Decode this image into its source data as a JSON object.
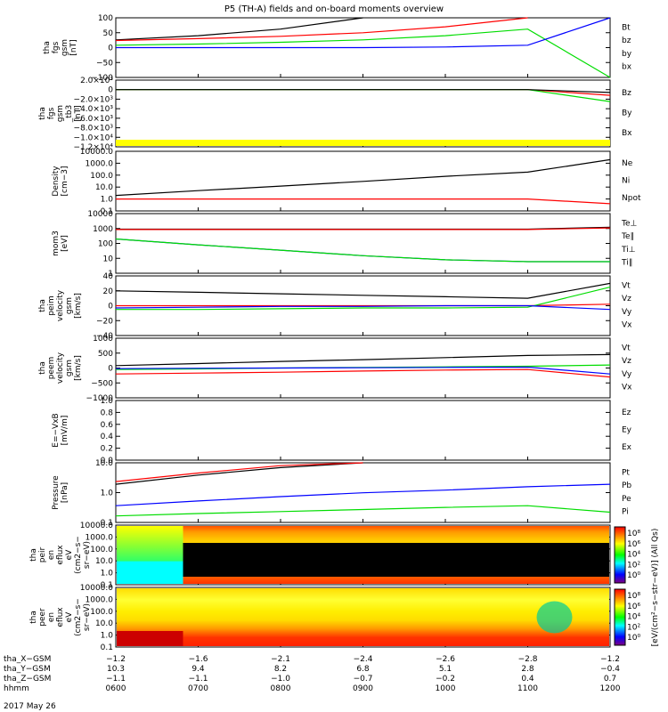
{
  "title": "P5 (TH-A) fields and on-board moments overview",
  "date": "2017 May 26",
  "colors": {
    "black": "#000000",
    "red": "#ff0000",
    "green": "#00dd00",
    "blue": "#0000ff",
    "yellow": "#ffff00"
  },
  "panels": [
    {
      "ylabel": [
        "tha",
        "fgs",
        "gsm",
        "[nT]"
      ],
      "ticks": [
        "100",
        "50",
        "0",
        "−50",
        "−100"
      ],
      "legend": [
        {
          "text": "Bt",
          "color": "black"
        },
        {
          "text": "bz",
          "color": "red"
        },
        {
          "text": "by",
          "color": "green"
        },
        {
          "text": "bx",
          "color": "blue"
        }
      ]
    },
    {
      "ylabel": [
        "tha",
        "fgs",
        "gsm",
        "_tb3",
        "[nT]"
      ],
      "ticks": [
        "2.0×10³",
        "0",
        "−2.0×10³",
        "−4.0×10³",
        "−6.0×10³",
        "−8.0×10³",
        "−1.0×10⁴",
        "−1.2×10⁴"
      ],
      "legend": [
        {
          "text": "Bz",
          "color": "red"
        },
        {
          "text": "By",
          "color": "green"
        },
        {
          "text": "Bx",
          "color": "black"
        }
      ]
    },
    {
      "ylabel": [
        "Density",
        "[cm−3]"
      ],
      "ticks": [
        "10000.0",
        "1000.0",
        "100.0",
        "10.0",
        "1.0",
        "0.1"
      ],
      "legend": [
        {
          "text": "Ne",
          "color": "red"
        },
        {
          "text": "Ni",
          "color": "black"
        },
        {
          "text": "Npot",
          "color": "blue"
        }
      ]
    },
    {
      "ylabel": [
        "mom3",
        "[eV]"
      ],
      "ticks": [
        "10000",
        "1000",
        "100",
        "10",
        "1"
      ],
      "legend": [
        {
          "text": "Te⊥",
          "color": "red"
        },
        {
          "text": "Te∥",
          "color": "black"
        },
        {
          "text": "Ti⊥",
          "color": "blue"
        },
        {
          "text": "Ti∥",
          "color": "green"
        }
      ]
    },
    {
      "ylabel": [
        "tha",
        "peim",
        "velocity",
        "gsm",
        "[km/s]"
      ],
      "ticks": [
        "40",
        "20",
        "0",
        "−20",
        "−40"
      ],
      "legend": [
        {
          "text": "Vt",
          "color": "black"
        },
        {
          "text": "Vz",
          "color": "red"
        },
        {
          "text": "Vy",
          "color": "green"
        },
        {
          "text": "Vx",
          "color": "blue"
        }
      ]
    },
    {
      "ylabel": [
        "tha",
        "peem",
        "velocity",
        "gsm",
        "[km/s]"
      ],
      "ticks": [
        "1000",
        "500",
        "0",
        "−500",
        "−1000"
      ],
      "legend": [
        {
          "text": "Vt",
          "color": "black"
        },
        {
          "text": "Vz",
          "color": "red"
        },
        {
          "text": "Vy",
          "color": "green"
        },
        {
          "text": "Vx",
          "color": "blue"
        }
      ]
    },
    {
      "ylabel": [
        "E=−VxB",
        "[mV/m]"
      ],
      "ticks": [
        "1.0",
        "0.8",
        "0.6",
        "0.4",
        "0.2",
        "0.0"
      ],
      "legend": [
        {
          "text": "Ez",
          "color": "red"
        },
        {
          "text": "Ey",
          "color": "green"
        },
        {
          "text": "Ex",
          "color": "blue"
        }
      ]
    },
    {
      "ylabel": [
        "Pressure",
        "[nPa]"
      ],
      "ticks": [
        "10.0",
        "1.0",
        "0.1"
      ],
      "legend": [
        {
          "text": "Pt",
          "color": "black"
        },
        {
          "text": "Pb",
          "color": "red"
        },
        {
          "text": "Pe",
          "color": "green"
        },
        {
          "text": "Pi",
          "color": "blue"
        }
      ]
    },
    {
      "ylabel": [
        "tha",
        "peir",
        "en",
        "eflux",
        "eV",
        "(cm2−s−",
        "sr−eV)"
      ],
      "ticks": [
        "10000.0",
        "1000.0",
        "100.0",
        "10.0",
        "1.0",
        "0.1"
      ],
      "cbar_ticks": [
        "10⁸",
        "10⁶",
        "10⁴",
        "10²",
        "10⁰"
      ]
    },
    {
      "ylabel": [
        "tha",
        "peer",
        "en",
        "eflux",
        "eV",
        "(cm2−s−",
        "sr−eV)"
      ],
      "ticks": [
        "10000.0",
        "1000.0",
        "100.0",
        "10.0",
        "1.0",
        "0.1"
      ],
      "cbar_ticks": [
        "10⁸",
        "10⁶",
        "10⁴",
        "10²",
        "10⁰"
      ]
    }
  ],
  "colorbar_label": "[eV/(cm²−s−str−eV)] (All Qs)",
  "colorbar_label2": "[eV/(cm²−s−sr−eV)]",
  "footer": {
    "rows": [
      {
        "label": "tha_X−GSM",
        "values": [
          "−1.2",
          "−1.6",
          "−2.1",
          "−2.4",
          "−2.6",
          "−2.8",
          "−1.2"
        ]
      },
      {
        "label": "tha_Y−GSM",
        "values": [
          "10.3",
          "9.4",
          "8.2",
          "6.8",
          "5.1",
          "2.8",
          "−0.4"
        ]
      },
      {
        "label": "tha_Z−GSM",
        "values": [
          "−1.1",
          "−1.1",
          "−1.0",
          "−0.7",
          "−0.2",
          "0.4",
          "0.7"
        ]
      },
      {
        "label": "hhmm",
        "values": [
          "0600",
          "0700",
          "0800",
          "0900",
          "1000",
          "1100",
          "1200"
        ]
      }
    ]
  },
  "chart_data": {
    "type": "line",
    "x": [
      "0600",
      "0700",
      "0800",
      "0900",
      "1000",
      "1100",
      "1200"
    ],
    "series": [
      {
        "panel": 0,
        "name": "Bt",
        "values": [
          26,
          40,
          62,
          100,
          null,
          null,
          null
        ]
      },
      {
        "panel": 0,
        "name": "bz",
        "values": [
          24,
          30,
          38,
          50,
          70,
          100,
          null
        ]
      },
      {
        "panel": 0,
        "name": "by",
        "values": [
          8,
          12,
          18,
          26,
          40,
          62,
          -100
        ]
      },
      {
        "panel": 0,
        "name": "bx",
        "values": [
          0,
          0,
          0,
          0,
          2,
          8,
          100
        ]
      },
      {
        "panel": 1,
        "name": "Bz",
        "values": [
          0,
          0,
          0,
          0,
          0,
          0,
          -1200
        ]
      },
      {
        "panel": 1,
        "name": "By",
        "values": [
          0,
          0,
          0,
          0,
          0,
          0,
          -2500
        ]
      },
      {
        "panel": 1,
        "name": "Bx",
        "values": [
          0,
          0,
          0,
          0,
          0,
          0,
          -600
        ]
      },
      {
        "panel": 2,
        "name": "Ni",
        "values": [
          2,
          5,
          12,
          30,
          80,
          180,
          2000
        ]
      },
      {
        "panel": 2,
        "name": "Ne",
        "values": [
          1,
          1,
          1,
          1,
          1,
          1,
          0.4
        ]
      },
      {
        "panel": 3,
        "name": "Te∥",
        "values": [
          900,
          900,
          900,
          900,
          900,
          900,
          1200
        ]
      },
      {
        "panel": 3,
        "name": "Te⊥",
        "values": [
          850,
          850,
          850,
          850,
          850,
          850,
          1100
        ]
      },
      {
        "panel": 3,
        "name": "Ti⊥",
        "values": [
          200,
          80,
          35,
          15,
          8,
          6,
          6
        ]
      },
      {
        "panel": 3,
        "name": "Ti∥",
        "values": [
          200,
          80,
          35,
          15,
          8,
          6,
          6
        ]
      },
      {
        "panel": 4,
        "name": "Vt",
        "values": [
          20,
          18,
          16,
          14,
          12,
          10,
          30
        ]
      },
      {
        "panel": 4,
        "name": "Vz",
        "values": [
          0,
          0,
          0,
          0,
          0,
          0,
          2
        ]
      },
      {
        "panel": 4,
        "name": "Vy",
        "values": [
          -5,
          -5,
          -4,
          -3,
          -3,
          -2,
          25
        ]
      },
      {
        "panel": 4,
        "name": "Vx",
        "values": [
          -3,
          -2,
          -1,
          -1,
          0,
          0,
          -5
        ]
      },
      {
        "panel": 5,
        "name": "Vt",
        "values": [
          80,
          150,
          220,
          280,
          350,
          420,
          450
        ]
      },
      {
        "panel": 5,
        "name": "Vz",
        "values": [
          -200,
          -170,
          -140,
          -100,
          -70,
          -50,
          -300
        ]
      },
      {
        "panel": 5,
        "name": "Vy",
        "values": [
          -50,
          -30,
          0,
          20,
          40,
          60,
          100
        ]
      },
      {
        "panel": 5,
        "name": "Vx",
        "values": [
          -20,
          -10,
          0,
          10,
          20,
          30,
          -200
        ]
      },
      {
        "panel": 7,
        "name": "Pt",
        "values": [
          3,
          8,
          18,
          40,
          null,
          null,
          null
        ]
      },
      {
        "panel": 7,
        "name": "Pb",
        "values": [
          4,
          10,
          22,
          45,
          null,
          null,
          null
        ]
      },
      {
        "panel": 7,
        "name": "Pi",
        "values": [
          0.3,
          0.5,
          0.8,
          1.2,
          1.6,
          2.3,
          3
        ]
      },
      {
        "panel": 7,
        "name": "Pe",
        "values": [
          0.1,
          0.13,
          0.16,
          0.2,
          0.25,
          0.3,
          0.15
        ]
      }
    ]
  }
}
